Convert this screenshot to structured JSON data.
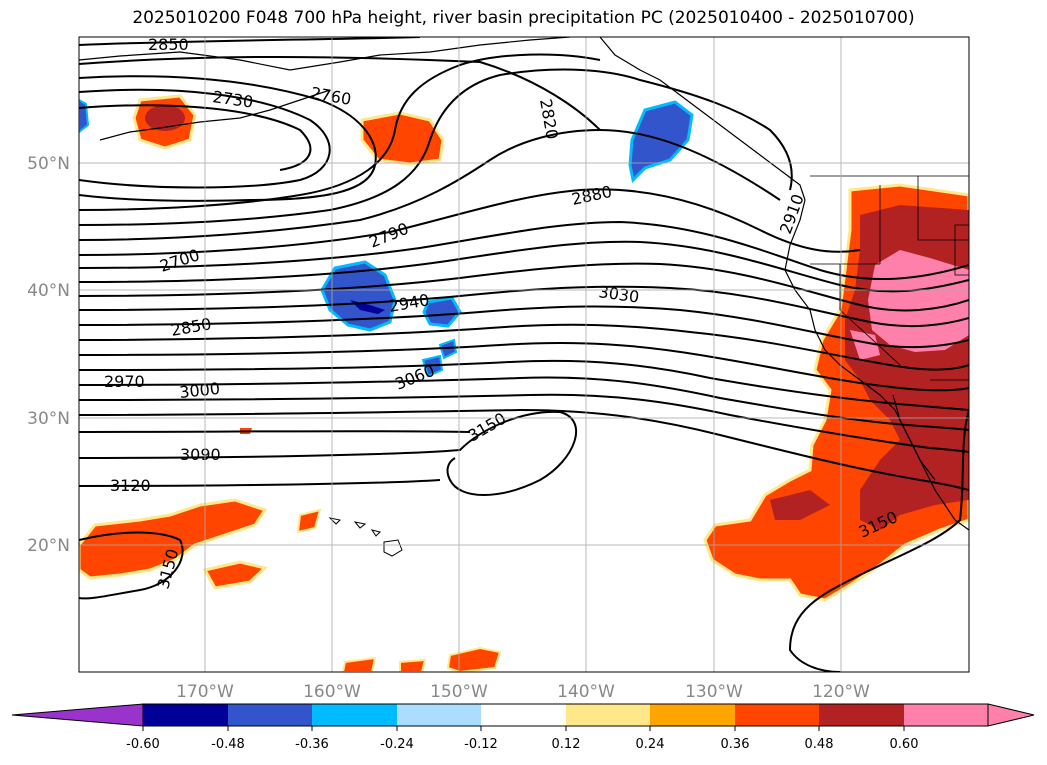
{
  "title": "2025010200 F048 700 hPa height, river basin precipitation PC (2025010400 - 2025010700)",
  "lat_labels": [
    "50°N",
    "40°N",
    "30°N",
    "20°N"
  ],
  "lon_labels": [
    "170°W",
    "160°W",
    "150°W",
    "140°W",
    "130°W",
    "120°W"
  ],
  "contour_labels": [
    "2850",
    "2730",
    "2760",
    "2820",
    "2880",
    "2910",
    "2700",
    "2790",
    "2940",
    "3030",
    "2850",
    "3060",
    "2970",
    "3000",
    "3150",
    "3090",
    "3120",
    "3150",
    "3150"
  ],
  "colorbar": {
    "ticks": [
      "-0.60",
      "-0.48",
      "-0.36",
      "-0.24",
      "-0.12",
      "0.12",
      "0.24",
      "0.36",
      "0.48",
      "0.60"
    ],
    "colors": [
      "#9933cc",
      "#000099",
      "#3355cc",
      "#00bbff",
      "#aaddff",
      "#ffffff",
      "#ffe88a",
      "#ffa500",
      "#ff4500",
      "#b22222",
      "#ff80aa",
      "#ff80aa"
    ]
  },
  "palette": {
    "neg_light": "#00bbff",
    "neg_mid": "#3355cc",
    "neg_dark": "#000099",
    "pos_yellow": "#ffe88a",
    "pos_orange": "#ffa500",
    "pos_redorange": "#ff4500",
    "pos_darkred": "#b22222",
    "pos_pink": "#ff80aa"
  }
}
